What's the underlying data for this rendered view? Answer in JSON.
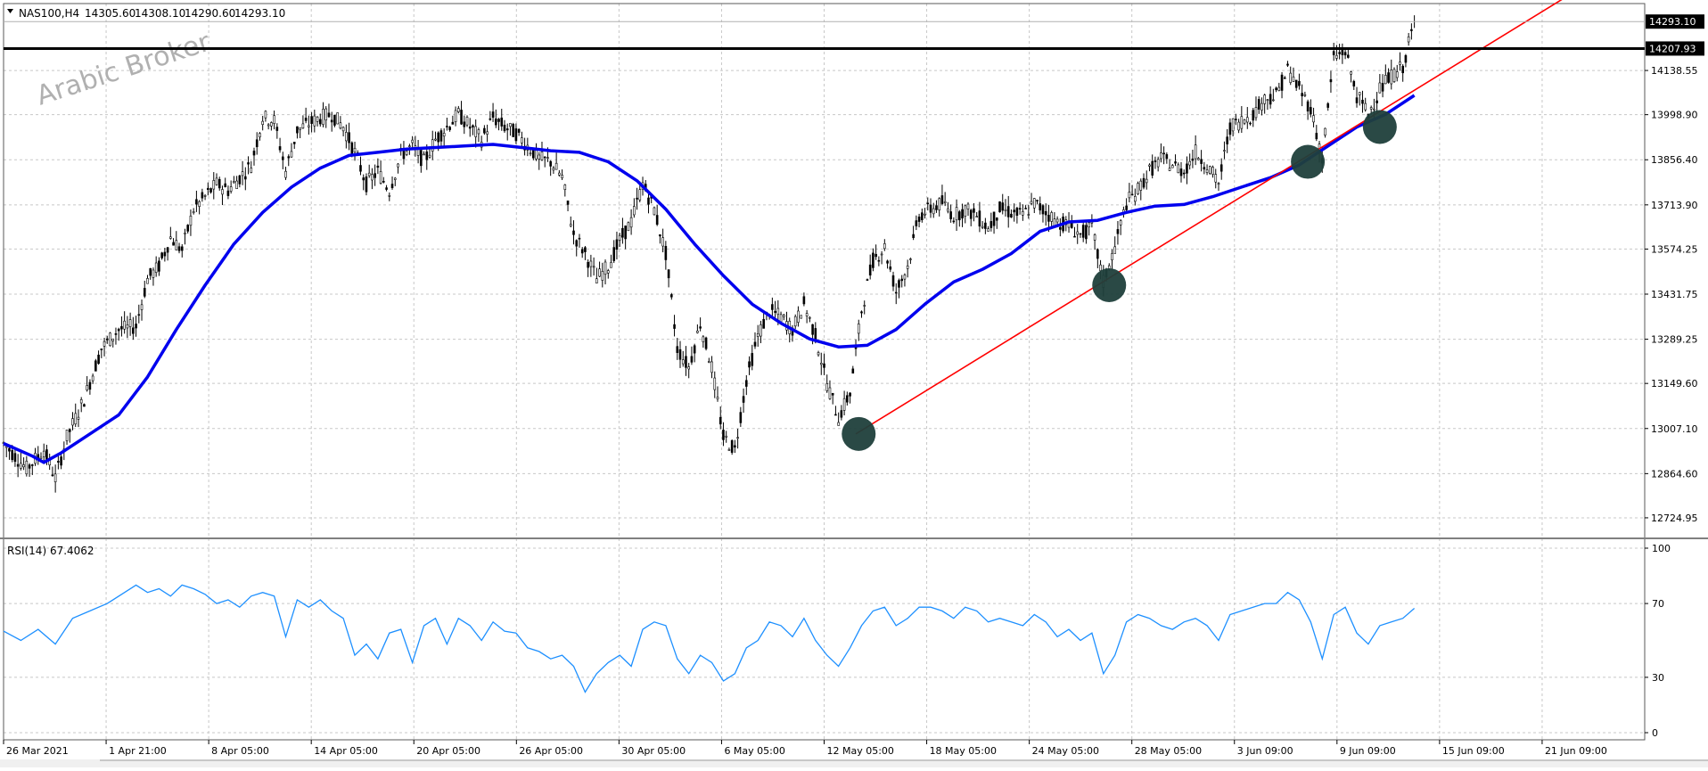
{
  "watermark": "Arabic Broker",
  "chart_data": [
    {
      "type": "candlestick",
      "title": "NAS100,H4",
      "ohlc_header": {
        "open": "14305.60",
        "high": "14308.10",
        "low": "14290.60",
        "close": "14293.10"
      },
      "ylim": [
        12660,
        14350
      ],
      "grid": true,
      "y_ticks": [
        12724.95,
        12864.6,
        13007.1,
        13149.6,
        13289.25,
        13431.75,
        13574.25,
        13713.9,
        13856.4,
        13998.9,
        14138.55
      ],
      "x_ticks": [
        "26 Mar 2021",
        "1 Apr 21:00",
        "8 Apr 05:00",
        "14 Apr 05:00",
        "20 Apr 05:00",
        "26 Apr 05:00",
        "30 Apr 05:00",
        "6 May 05:00",
        "12 May 05:00",
        "18 May 05:00",
        "24 May 05:00",
        "28 May 05:00",
        "3 Jun 09:00",
        "9 Jun 09:00",
        "15 Jun 09:00",
        "21 Jun 09:00"
      ],
      "horizontal_line": {
        "value": 14207.93,
        "label": "14207.93",
        "color": "#000000"
      },
      "last_price": {
        "value": 14293.1,
        "label": "14293.10"
      },
      "price_path": [
        [
          0,
          12960
        ],
        [
          8,
          12880
        ],
        [
          14,
          12940
        ],
        [
          18,
          12850
        ],
        [
          22,
          12980
        ],
        [
          28,
          13100
        ],
        [
          34,
          13260
        ],
        [
          40,
          13320
        ],
        [
          46,
          13330
        ],
        [
          50,
          13480
        ],
        [
          54,
          13520
        ],
        [
          58,
          13610
        ],
        [
          62,
          13570
        ],
        [
          66,
          13700
        ],
        [
          70,
          13740
        ],
        [
          74,
          13780
        ],
        [
          78,
          13760
        ],
        [
          82,
          13800
        ],
        [
          86,
          13840
        ],
        [
          90,
          13990
        ],
        [
          94,
          13980
        ],
        [
          98,
          13820
        ],
        [
          102,
          13950
        ],
        [
          106,
          13970
        ],
        [
          110,
          13990
        ],
        [
          114,
          14000
        ],
        [
          118,
          13960
        ],
        [
          122,
          13880
        ],
        [
          126,
          13780
        ],
        [
          130,
          13820
        ],
        [
          134,
          13760
        ],
        [
          138,
          13870
        ],
        [
          142,
          13900
        ],
        [
          146,
          13850
        ],
        [
          150,
          13920
        ],
        [
          154,
          13960
        ],
        [
          158,
          14000
        ],
        [
          162,
          13960
        ],
        [
          166,
          13920
        ],
        [
          170,
          13990
        ],
        [
          174,
          13960
        ],
        [
          178,
          13940
        ],
        [
          182,
          13900
        ],
        [
          186,
          13860
        ],
        [
          190,
          13850
        ],
        [
          194,
          13800
        ],
        [
          198,
          13620
        ],
        [
          202,
          13560
        ],
        [
          206,
          13480
        ],
        [
          210,
          13520
        ],
        [
          214,
          13600
        ],
        [
          218,
          13660
        ],
        [
          222,
          13780
        ],
        [
          226,
          13700
        ],
        [
          230,
          13560
        ],
        [
          234,
          13260
        ],
        [
          238,
          13200
        ],
        [
          242,
          13340
        ],
        [
          246,
          13200
        ],
        [
          250,
          12980
        ],
        [
          254,
          12940
        ],
        [
          258,
          13160
        ],
        [
          262,
          13300
        ],
        [
          266,
          13380
        ],
        [
          270,
          13360
        ],
        [
          274,
          13320
        ],
        [
          278,
          13400
        ],
        [
          282,
          13300
        ],
        [
          286,
          13150
        ],
        [
          290,
          13040
        ],
        [
          294,
          13120
        ],
        [
          298,
          13380
        ],
        [
          302,
          13540
        ],
        [
          306,
          13580
        ],
        [
          310,
          13440
        ],
        [
          314,
          13520
        ],
        [
          318,
          13680
        ],
        [
          322,
          13700
        ],
        [
          326,
          13720
        ],
        [
          330,
          13680
        ],
        [
          334,
          13700
        ],
        [
          338,
          13680
        ],
        [
          342,
          13640
        ],
        [
          346,
          13700
        ],
        [
          350,
          13690
        ],
        [
          354,
          13680
        ],
        [
          358,
          13720
        ],
        [
          362,
          13690
        ],
        [
          366,
          13660
        ],
        [
          370,
          13650
        ],
        [
          374,
          13620
        ],
        [
          378,
          13640
        ],
        [
          382,
          13470
        ],
        [
          386,
          13580
        ],
        [
          390,
          13720
        ],
        [
          394,
          13760
        ],
        [
          398,
          13820
        ],
        [
          402,
          13860
        ],
        [
          406,
          13840
        ],
        [
          410,
          13820
        ],
        [
          414,
          13880
        ],
        [
          418,
          13840
        ],
        [
          422,
          13780
        ],
        [
          426,
          13960
        ],
        [
          430,
          13980
        ],
        [
          434,
          14000
        ],
        [
          438,
          14050
        ],
        [
          442,
          14060
        ],
        [
          446,
          14140
        ],
        [
          450,
          14080
        ],
        [
          454,
          14020
        ],
        [
          458,
          13860
        ],
        [
          462,
          14180
        ],
        [
          466,
          14200
        ],
        [
          470,
          14060
        ],
        [
          474,
          14000
        ],
        [
          478,
          14080
        ],
        [
          482,
          14120
        ],
        [
          486,
          14150
        ],
        [
          490,
          14293
        ]
      ],
      "moving_average": [
        [
          0,
          12960
        ],
        [
          10,
          12920
        ],
        [
          14,
          12900
        ],
        [
          20,
          12930
        ],
        [
          30,
          12990
        ],
        [
          40,
          13050
        ],
        [
          50,
          13170
        ],
        [
          60,
          13320
        ],
        [
          70,
          13460
        ],
        [
          80,
          13590
        ],
        [
          90,
          13690
        ],
        [
          100,
          13770
        ],
        [
          110,
          13830
        ],
        [
          120,
          13870
        ],
        [
          130,
          13880
        ],
        [
          140,
          13890
        ],
        [
          150,
          13895
        ],
        [
          160,
          13900
        ],
        [
          170,
          13905
        ],
        [
          180,
          13895
        ],
        [
          190,
          13885
        ],
        [
          200,
          13880
        ],
        [
          210,
          13850
        ],
        [
          220,
          13790
        ],
        [
          230,
          13700
        ],
        [
          240,
          13590
        ],
        [
          250,
          13490
        ],
        [
          260,
          13400
        ],
        [
          270,
          13340
        ],
        [
          280,
          13290
        ],
        [
          290,
          13265
        ],
        [
          300,
          13270
        ],
        [
          310,
          13320
        ],
        [
          320,
          13400
        ],
        [
          330,
          13470
        ],
        [
          340,
          13510
        ],
        [
          350,
          13560
        ],
        [
          360,
          13630
        ],
        [
          370,
          13660
        ],
        [
          380,
          13665
        ],
        [
          390,
          13690
        ],
        [
          400,
          13710
        ],
        [
          410,
          13715
        ],
        [
          420,
          13740
        ],
        [
          430,
          13770
        ],
        [
          440,
          13800
        ],
        [
          450,
          13840
        ],
        [
          460,
          13900
        ],
        [
          470,
          13960
        ],
        [
          480,
          14000
        ],
        [
          490,
          14060
        ]
      ],
      "trendline": {
        "from": [
          296,
          12990
        ],
        "to": [
          555,
          14440
        ],
        "color": "#ff0000"
      },
      "touch_points": [
        [
          297,
          12990
        ],
        [
          384,
          13460
        ],
        [
          453,
          13850
        ],
        [
          478,
          13960
        ]
      ],
      "ma_color": "#0000ee"
    },
    {
      "type": "line",
      "title": "RSI(14) 67.4062",
      "ylim": [
        0,
        100
      ],
      "y_ticks": [
        "100",
        "70",
        "30",
        "0"
      ],
      "rsi_points": [
        [
          0,
          55
        ],
        [
          6,
          50
        ],
        [
          12,
          56
        ],
        [
          18,
          48
        ],
        [
          24,
          62
        ],
        [
          30,
          66
        ],
        [
          36,
          70
        ],
        [
          42,
          76
        ],
        [
          46,
          80
        ],
        [
          50,
          76
        ],
        [
          54,
          78
        ],
        [
          58,
          74
        ],
        [
          62,
          80
        ],
        [
          66,
          78
        ],
        [
          70,
          75
        ],
        [
          74,
          70
        ],
        [
          78,
          72
        ],
        [
          82,
          68
        ],
        [
          86,
          74
        ],
        [
          90,
          76
        ],
        [
          94,
          74
        ],
        [
          98,
          52
        ],
        [
          102,
          72
        ],
        [
          106,
          68
        ],
        [
          110,
          72
        ],
        [
          114,
          66
        ],
        [
          118,
          62
        ],
        [
          122,
          42
        ],
        [
          126,
          48
        ],
        [
          130,
          40
        ],
        [
          134,
          54
        ],
        [
          138,
          56
        ],
        [
          142,
          38
        ],
        [
          146,
          58
        ],
        [
          150,
          62
        ],
        [
          154,
          48
        ],
        [
          158,
          62
        ],
        [
          162,
          58
        ],
        [
          166,
          50
        ],
        [
          170,
          60
        ],
        [
          174,
          55
        ],
        [
          178,
          54
        ],
        [
          182,
          46
        ],
        [
          186,
          44
        ],
        [
          190,
          40
        ],
        [
          194,
          42
        ],
        [
          198,
          36
        ],
        [
          202,
          22
        ],
        [
          206,
          32
        ],
        [
          210,
          38
        ],
        [
          214,
          42
        ],
        [
          218,
          36
        ],
        [
          222,
          56
        ],
        [
          226,
          60
        ],
        [
          230,
          58
        ],
        [
          234,
          40
        ],
        [
          238,
          32
        ],
        [
          242,
          42
        ],
        [
          246,
          38
        ],
        [
          250,
          28
        ],
        [
          254,
          32
        ],
        [
          258,
          46
        ],
        [
          262,
          50
        ],
        [
          266,
          60
        ],
        [
          270,
          58
        ],
        [
          274,
          52
        ],
        [
          278,
          62
        ],
        [
          282,
          50
        ],
        [
          286,
          42
        ],
        [
          290,
          36
        ],
        [
          294,
          46
        ],
        [
          298,
          58
        ],
        [
          302,
          66
        ],
        [
          306,
          68
        ],
        [
          310,
          58
        ],
        [
          314,
          62
        ],
        [
          318,
          68
        ],
        [
          322,
          68
        ],
        [
          326,
          66
        ],
        [
          330,
          62
        ],
        [
          334,
          68
        ],
        [
          338,
          66
        ],
        [
          342,
          60
        ],
        [
          346,
          62
        ],
        [
          350,
          60
        ],
        [
          354,
          58
        ],
        [
          358,
          64
        ],
        [
          362,
          60
        ],
        [
          366,
          52
        ],
        [
          370,
          56
        ],
        [
          374,
          50
        ],
        [
          378,
          54
        ],
        [
          382,
          32
        ],
        [
          386,
          42
        ],
        [
          390,
          60
        ],
        [
          394,
          64
        ],
        [
          398,
          62
        ],
        [
          402,
          58
        ],
        [
          406,
          56
        ],
        [
          410,
          60
        ],
        [
          414,
          62
        ],
        [
          418,
          58
        ],
        [
          422,
          50
        ],
        [
          426,
          64
        ],
        [
          430,
          66
        ],
        [
          434,
          68
        ],
        [
          438,
          70
        ],
        [
          442,
          70
        ],
        [
          446,
          76
        ],
        [
          450,
          72
        ],
        [
          454,
          60
        ],
        [
          458,
          40
        ],
        [
          462,
          64
        ],
        [
          466,
          68
        ],
        [
          470,
          54
        ],
        [
          474,
          48
        ],
        [
          478,
          58
        ],
        [
          482,
          60
        ],
        [
          486,
          62
        ],
        [
          490,
          67.4
        ]
      ],
      "line_color": "#1e90ff"
    }
  ]
}
